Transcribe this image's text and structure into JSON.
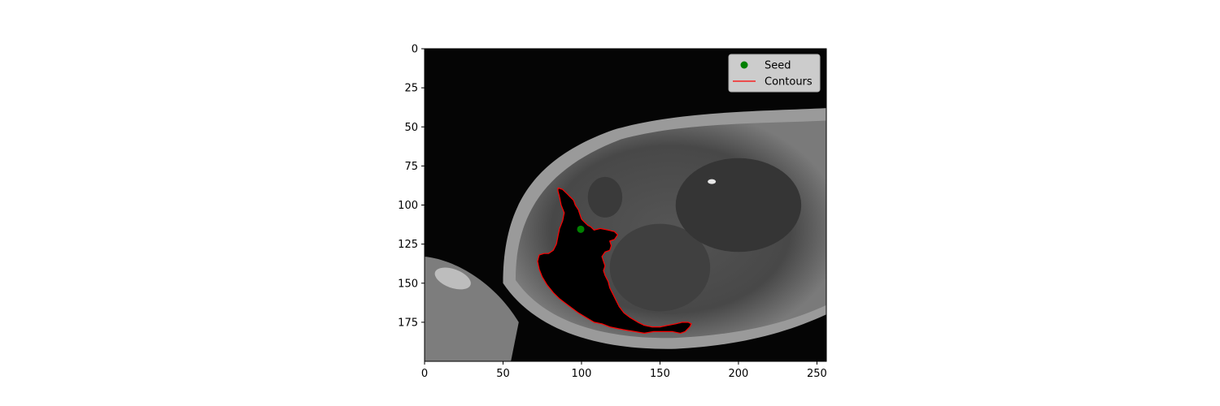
{
  "chart_data": {
    "type": "scatter",
    "title": "",
    "xlabel": "",
    "ylabel": "",
    "xlim": [
      0,
      256
    ],
    "ylim": [
      200,
      0
    ],
    "xticks": [
      0,
      50,
      100,
      150,
      200,
      250
    ],
    "yticks": [
      0,
      25,
      50,
      75,
      100,
      125,
      150,
      175
    ],
    "grid": false,
    "legend_position": "top-right",
    "background": "grayscale MRI image",
    "series": [
      {
        "name": "Seed",
        "kind": "point",
        "color": "#008000",
        "points": [
          [
            99.5,
            115.5
          ]
        ]
      },
      {
        "name": "Contours",
        "kind": "line",
        "color": "#ff0000",
        "path": [
          [
            85,
            89
          ],
          [
            88,
            90
          ],
          [
            91,
            93
          ],
          [
            93,
            95
          ],
          [
            95,
            97
          ],
          [
            96,
            100
          ],
          [
            98,
            103
          ],
          [
            99,
            106
          ],
          [
            100,
            109
          ],
          [
            102,
            111
          ],
          [
            104,
            113
          ],
          [
            106,
            114
          ],
          [
            108,
            116
          ],
          [
            112,
            115
          ],
          [
            117,
            116
          ],
          [
            121,
            117
          ],
          [
            123,
            119
          ],
          [
            121,
            122
          ],
          [
            118,
            123
          ],
          [
            119,
            126
          ],
          [
            118,
            129
          ],
          [
            115,
            130
          ],
          [
            113,
            133
          ],
          [
            114,
            136
          ],
          [
            115,
            139
          ],
          [
            114,
            142
          ],
          [
            115,
            145
          ],
          [
            117,
            149
          ],
          [
            118,
            153
          ],
          [
            120,
            157
          ],
          [
            122,
            161
          ],
          [
            124,
            165
          ],
          [
            127,
            169
          ],
          [
            131,
            172
          ],
          [
            136,
            175
          ],
          [
            140,
            177
          ],
          [
            145,
            178
          ],
          [
            150,
            178
          ],
          [
            155,
            177
          ],
          [
            160,
            176
          ],
          [
            164,
            175
          ],
          [
            168,
            175
          ],
          [
            170,
            176
          ],
          [
            169,
            178
          ],
          [
            166,
            181
          ],
          [
            163,
            182
          ],
          [
            158,
            181
          ],
          [
            152,
            181
          ],
          [
            146,
            181
          ],
          [
            140,
            182
          ],
          [
            134,
            181
          ],
          [
            128,
            180
          ],
          [
            123,
            179
          ],
          [
            118,
            178
          ],
          [
            113,
            176
          ],
          [
            108,
            175
          ],
          [
            103,
            172
          ],
          [
            98,
            169
          ],
          [
            94,
            166
          ],
          [
            90,
            163
          ],
          [
            86,
            160
          ],
          [
            82,
            156
          ],
          [
            78,
            151
          ],
          [
            75,
            146
          ],
          [
            73,
            141
          ],
          [
            72,
            136
          ],
          [
            73,
            132
          ],
          [
            76,
            131
          ],
          [
            79,
            131
          ],
          [
            82,
            129
          ],
          [
            84,
            125
          ],
          [
            85,
            120
          ],
          [
            86,
            115
          ],
          [
            88,
            110
          ],
          [
            89,
            105
          ],
          [
            87,
            100
          ],
          [
            86,
            95
          ],
          [
            85,
            91
          ],
          [
            85,
            89
          ]
        ]
      }
    ]
  }
}
